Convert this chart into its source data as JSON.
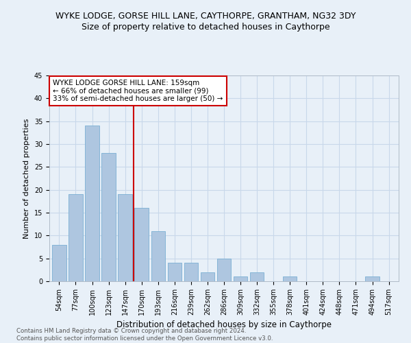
{
  "title": "WYKE LODGE, GORSE HILL LANE, CAYTHORPE, GRANTHAM, NG32 3DY",
  "subtitle": "Size of property relative to detached houses in Caythorpe",
  "xlabel": "Distribution of detached houses by size in Caythorpe",
  "ylabel": "Number of detached properties",
  "footer_line1": "Contains HM Land Registry data © Crown copyright and database right 2024.",
  "footer_line2": "Contains public sector information licensed under the Open Government Licence v3.0.",
  "bar_labels": [
    "54sqm",
    "77sqm",
    "100sqm",
    "123sqm",
    "147sqm",
    "170sqm",
    "193sqm",
    "216sqm",
    "239sqm",
    "262sqm",
    "286sqm",
    "309sqm",
    "332sqm",
    "355sqm",
    "378sqm",
    "401sqm",
    "424sqm",
    "448sqm",
    "471sqm",
    "494sqm",
    "517sqm"
  ],
  "bar_values": [
    8,
    19,
    34,
    28,
    19,
    16,
    11,
    4,
    4,
    2,
    5,
    1,
    2,
    0,
    1,
    0,
    0,
    0,
    0,
    1,
    0
  ],
  "bar_color": "#aec6e0",
  "bar_edge_color": "#7aafd4",
  "vline_color": "#cc0000",
  "annotation_text": "WYKE LODGE GORSE HILL LANE: 159sqm\n← 66% of detached houses are smaller (99)\n33% of semi-detached houses are larger (50) →",
  "annotation_box_color": "#ffffff",
  "annotation_box_edge": "#cc0000",
  "ylim": [
    0,
    45
  ],
  "yticks": [
    0,
    5,
    10,
    15,
    20,
    25,
    30,
    35,
    40,
    45
  ],
  "grid_color": "#c8d8ea",
  "bg_color": "#e8f0f8",
  "title_fontsize": 9,
  "subtitle_fontsize": 9,
  "ylabel_fontsize": 8,
  "xlabel_fontsize": 8.5,
  "tick_fontsize": 7,
  "annot_fontsize": 7.5,
  "footer_fontsize": 6.2
}
